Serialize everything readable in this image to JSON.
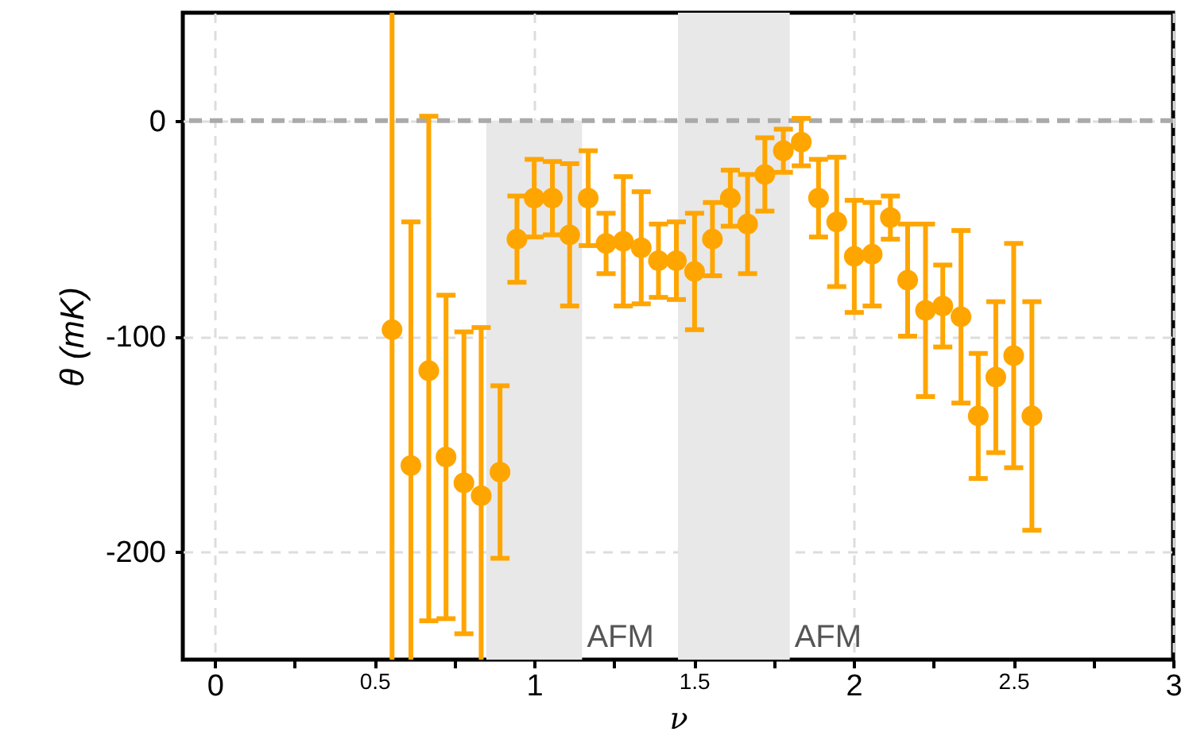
{
  "chart_data": {
    "type": "scatter",
    "xlabel": "ν",
    "ylabel": "θ (mK)",
    "x": [
      0.555,
      0.614,
      0.67,
      0.724,
      0.78,
      0.834,
      0.893,
      0.946,
      1.0,
      1.057,
      1.111,
      1.169,
      1.225,
      1.279,
      1.335,
      1.389,
      1.445,
      1.502,
      1.558,
      1.614,
      1.668,
      1.722,
      1.78,
      1.836,
      1.89,
      1.947,
      2.002,
      2.058,
      2.115,
      2.169,
      2.225,
      2.279,
      2.336,
      2.39,
      2.445,
      2.501,
      2.558
    ],
    "series": [
      {
        "color": "#ffa500",
        "values": [
          -97,
          -160,
          -116,
          -156,
          -168,
          -174,
          -163,
          -55,
          -36,
          -36,
          -53,
          -36,
          -57,
          -56,
          -59,
          -65,
          -65,
          -70,
          -55,
          -36,
          -48,
          -25,
          -14,
          -10,
          -36,
          -47,
          -63,
          -62,
          -45,
          -74,
          -88,
          -86,
          -91,
          -137,
          -119,
          -109,
          -137
        ],
        "errors": [
          [
            -250,
            50
          ],
          [
            -250,
            -47
          ],
          [
            -232,
            2
          ],
          75,
          70,
          [
            -250,
            -96
          ],
          40,
          20,
          18,
          17,
          33,
          22,
          14,
          30,
          26,
          17,
          18,
          27,
          17,
          13,
          23,
          17,
          10,
          11,
          18,
          30,
          26,
          24,
          10,
          26,
          40,
          19,
          40,
          29,
          35,
          52,
          53
        ]
      }
    ],
    "xlim": [
      -0.1,
      3.0
    ],
    "ylim": [
      -250,
      50
    ],
    "xticks": [
      0,
      {
        "value": 0.25,
        "label": null
      },
      0.5,
      {
        "value": 0.75,
        "label": null
      },
      1,
      {
        "value": 1.25,
        "label": null
      },
      1.5,
      {
        "value": 1.75,
        "label": null
      },
      2,
      {
        "value": 2.25,
        "label": null
      },
      2.5,
      {
        "value": 2.75,
        "label": null
      },
      3
    ],
    "yticks": [
      0,
      -100,
      -200
    ],
    "ref_lines": [
      {
        "axis": "y",
        "value": 0,
        "color": "#aaaaaa",
        "line_style": "dashed"
      }
    ],
    "bands": [
      {
        "axis": "x",
        "from": 0.85,
        "to": 1.15,
        "label": "AFM",
        "color": "#e8e8e8"
      },
      {
        "axis": "x",
        "from": 1.45,
        "to": 1.8,
        "label": "AFM",
        "color": "#e8e8e8"
      }
    ],
    "grid": true,
    "marker": "circle"
  }
}
